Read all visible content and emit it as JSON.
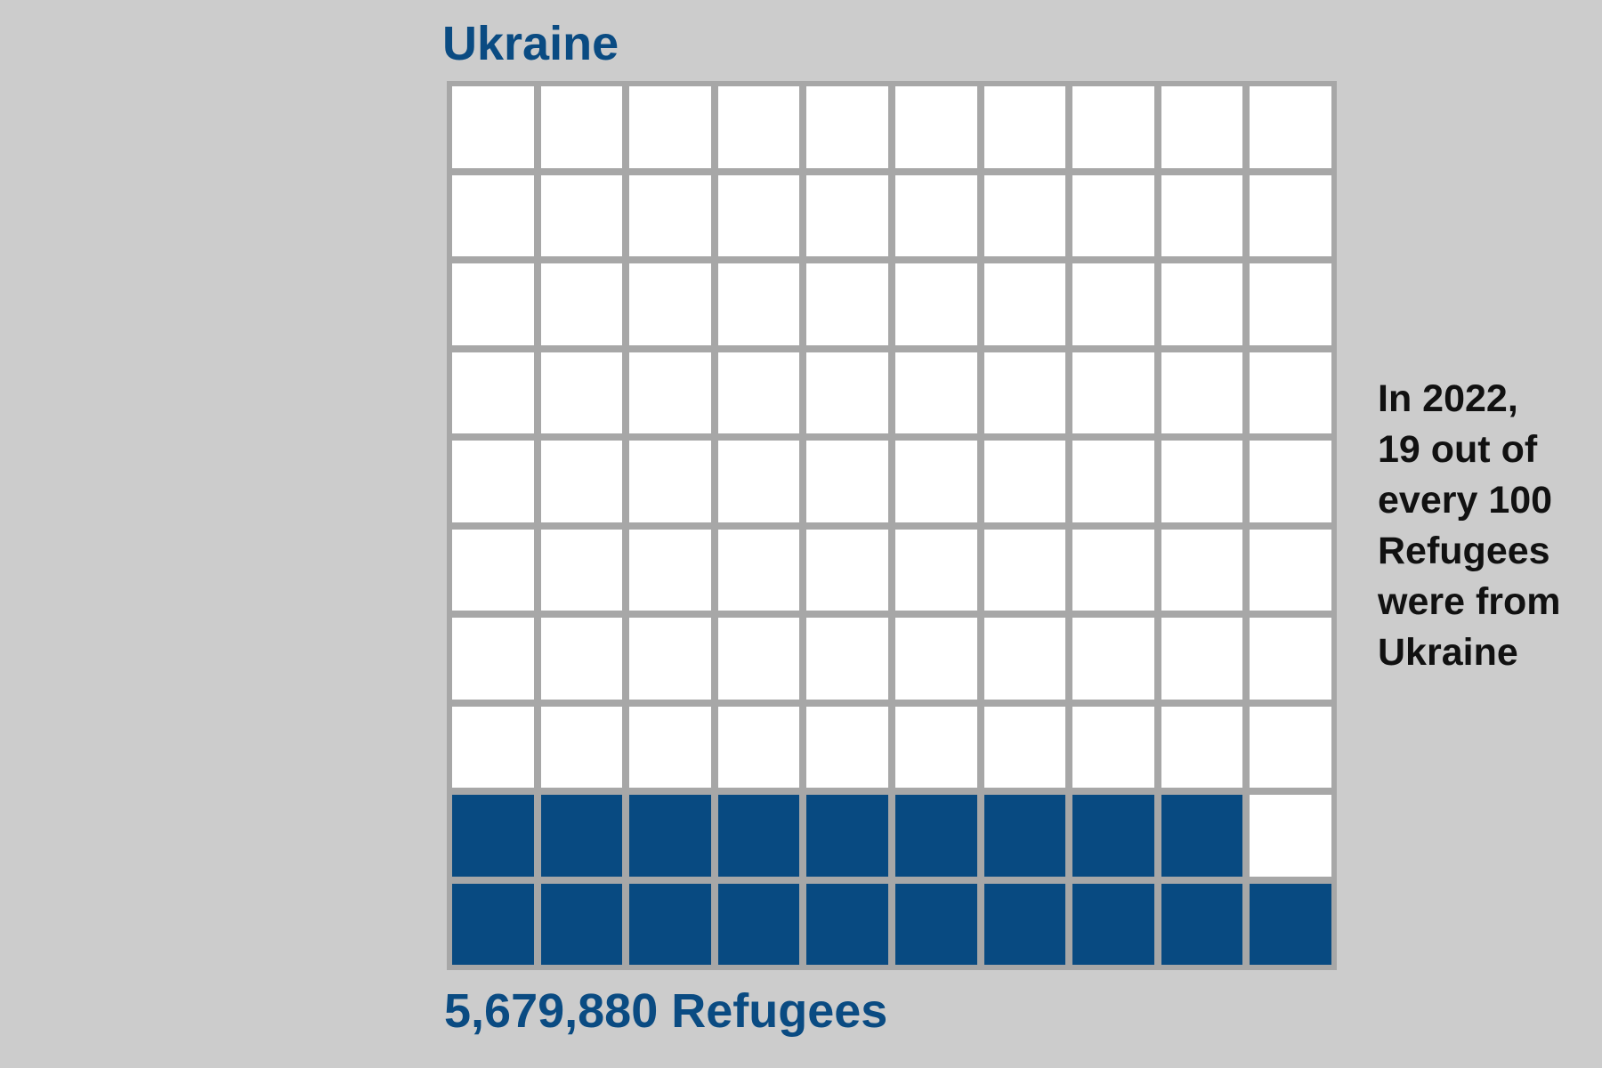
{
  "chart_data": {
    "type": "waffle",
    "title": "Ukraine",
    "total_label": "5,679,880 Refugees",
    "grid": {
      "rows": 10,
      "cols": 10
    },
    "filled_count": 19,
    "total_count": 100,
    "fill_order": "bottom-up, left-to-right",
    "colors": {
      "filled": "#084a81",
      "empty": "#ffffff",
      "border": "#a7a7a7",
      "background": "#cccccc",
      "title": "#0a4b82"
    },
    "annotation": [
      "In 2022,",
      "19 out of",
      "every 100",
      "Refugees",
      "were from",
      "Ukraine"
    ]
  }
}
